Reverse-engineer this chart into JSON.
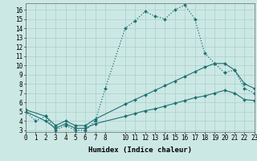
{
  "background_color": "#cce8e5",
  "grid_color": "#aacfcc",
  "line_color": "#1e7070",
  "curve1_x": [
    0,
    1,
    2,
    3,
    4,
    5,
    6,
    7,
    8,
    10,
    11,
    12,
    13,
    14,
    15,
    16,
    17,
    18,
    19,
    20,
    21,
    22,
    23
  ],
  "curve1_y": [
    5.0,
    4.0,
    4.5,
    3.0,
    3.5,
    3.0,
    3.0,
    4.0,
    7.5,
    14.0,
    14.8,
    15.8,
    15.3,
    15.0,
    16.0,
    16.5,
    15.0,
    11.3,
    10.2,
    9.2,
    9.5,
    7.5,
    7.0
  ],
  "curve2_x": [
    0,
    2,
    3,
    4,
    5,
    6,
    7,
    10,
    11,
    12,
    13,
    14,
    15,
    16,
    17,
    18,
    19,
    20,
    21,
    22,
    23
  ],
  "curve2_y": [
    5.2,
    4.5,
    3.5,
    4.0,
    3.5,
    3.5,
    4.2,
    5.8,
    6.3,
    6.8,
    7.3,
    7.8,
    8.3,
    8.8,
    9.3,
    9.8,
    10.2,
    10.2,
    9.5,
    8.0,
    7.5
  ],
  "curve3_x": [
    0,
    2,
    3,
    4,
    5,
    6,
    7,
    10,
    11,
    12,
    13,
    14,
    15,
    16,
    17,
    18,
    19,
    20,
    21,
    22,
    23
  ],
  "curve3_y": [
    5.0,
    4.0,
    3.2,
    3.7,
    3.2,
    3.2,
    3.7,
    4.5,
    4.8,
    5.1,
    5.3,
    5.6,
    5.9,
    6.2,
    6.5,
    6.7,
    7.0,
    7.3,
    7.0,
    6.3,
    6.2
  ],
  "xlim": [
    0,
    23
  ],
  "ylim": [
    2.8,
    16.7
  ],
  "xticks": [
    0,
    1,
    2,
    3,
    4,
    5,
    6,
    7,
    8,
    10,
    11,
    12,
    13,
    14,
    15,
    16,
    17,
    18,
    19,
    20,
    21,
    22,
    23
  ],
  "yticks": [
    3,
    4,
    5,
    6,
    7,
    8,
    9,
    10,
    11,
    12,
    13,
    14,
    15,
    16
  ],
  "xlabel": "Humidex (Indice chaleur)",
  "xlabel_fontsize": 6.5,
  "tick_fontsize": 5.5,
  "marker": "D",
  "markersize": 2.0,
  "linewidth": 0.8,
  "dotted_linewidth": 0.9
}
